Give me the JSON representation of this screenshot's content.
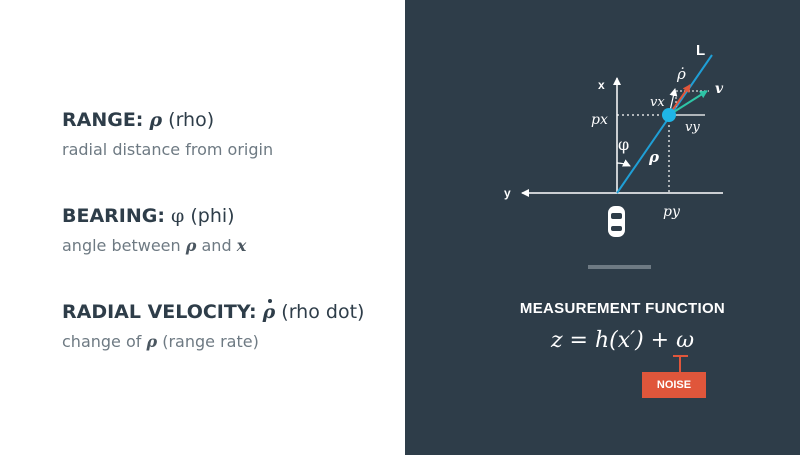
{
  "terms": [
    {
      "name": "RANGE:",
      "symbol": "ρ",
      "paren": "(rho)",
      "description": "radial distance from origin"
    },
    {
      "name": "BEARING:",
      "symbol": "φ",
      "paren": "(phi)",
      "description_prefix": "angle between",
      "description_sym1": "ρ",
      "description_mid": "and",
      "description_sym2": "x"
    },
    {
      "name": "RADIAL VELOCITY:",
      "symbol": "ρ",
      "paren": "(rho dot)",
      "description_prefix": "change of",
      "description_sym": "ρ",
      "description_suffix": "(range rate)"
    }
  ],
  "diagram": {
    "labels": {
      "L": "L",
      "rho_dot": "ρ̇",
      "v": "v",
      "vx": "vx",
      "vy": "vy",
      "x_axis": "x",
      "y_axis": "y",
      "px": "px",
      "py": "py",
      "phi": "φ",
      "rho": "ρ"
    },
    "colors": {
      "background": "#2e3d49",
      "line": "#ffffff",
      "ray": "#1f9fd6",
      "dot": "#1fb5e6",
      "rho_dot_arrow": "#e0563b",
      "v_arrow": "#2ec4a6",
      "noise": "#e0563b"
    },
    "icons": [
      "car-icon"
    ]
  },
  "measurement": {
    "title": "MEASUREMENT FUNCTION",
    "equation": "z = h(x′) + ω",
    "noise_label": "NOISE"
  }
}
